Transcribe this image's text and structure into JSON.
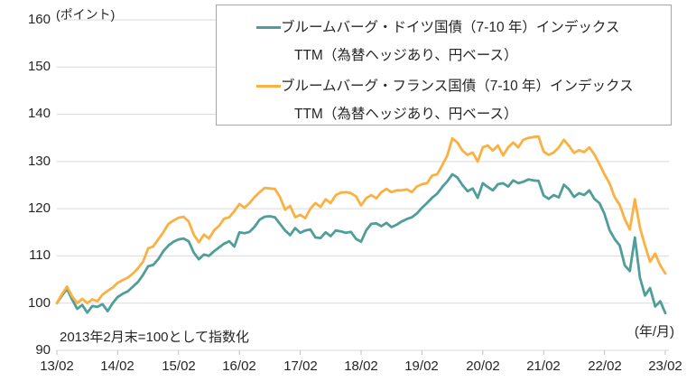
{
  "chart_data": {
    "type": "line",
    "title": "",
    "y_unit_label": "(ポイント)",
    "x_unit_label": "(年/月)",
    "note": "2013年2月末=100として指数化",
    "x_tick_labels": [
      "13/02",
      "14/02",
      "15/02",
      "16/02",
      "17/02",
      "18/02",
      "19/02",
      "20/02",
      "21/02",
      "22/02",
      "23/02"
    ],
    "y_ticks_top_down": [
      "160",
      "150",
      "140",
      "130",
      "120",
      "110",
      "100",
      "90"
    ],
    "ylim": [
      90,
      160
    ],
    "x_range": "2013/02 - 2023/02 monthly",
    "grid": "horizontal",
    "legend_position": "top-right-boxed",
    "colors": {
      "germany": "#4F9E99",
      "france": "#FBB042",
      "grid": "#D9D9D9",
      "tick": "#BFBFBF",
      "text": "#262626",
      "legend_border": "#A6A6A6"
    },
    "series": [
      {
        "name": "ブルームバーグ・ドイツ国債（7-10 年）インデックスTTM（為替ヘッジあり、円ベース）",
        "name_line1": "ブルームバーグ・ドイツ国債（7-10 年）インデックス",
        "name_line2": "TTM（為替ヘッジあり、円ベース）",
        "color": "#4F9E99",
        "values": [
          100.0,
          101.6,
          103.0,
          100.8,
          98.8,
          99.6,
          98.0,
          99.4,
          99.2,
          99.8,
          98.3,
          100.0,
          101.3,
          102.0,
          102.5,
          103.5,
          104.5,
          106.0,
          107.8,
          108.1,
          109.3,
          111.0,
          112.2,
          113.0,
          113.5,
          113.7,
          113.1,
          110.7,
          109.3,
          110.3,
          110.0,
          111.0,
          111.8,
          112.6,
          113.1,
          112.0,
          115.0,
          114.8,
          115.1,
          116.2,
          117.7,
          118.3,
          118.4,
          118.2,
          116.8,
          115.4,
          114.4,
          115.9,
          114.9,
          115.4,
          115.6,
          113.9,
          113.8,
          115.0,
          114.2,
          115.4,
          115.2,
          114.9,
          115.1,
          113.6,
          113.0,
          115.4,
          116.8,
          116.9,
          116.3,
          117.0,
          116.1,
          116.6,
          117.3,
          117.8,
          118.2,
          119.0,
          120.2,
          121.2,
          122.3,
          123.2,
          124.6,
          125.8,
          127.3,
          126.6,
          125.0,
          123.7,
          124.3,
          122.3,
          125.4,
          124.6,
          123.9,
          125.2,
          125.4,
          124.7,
          126.0,
          125.4,
          125.7,
          126.2,
          126.0,
          125.9,
          122.8,
          122.1,
          122.9,
          122.4,
          125.1,
          124.1,
          122.5,
          123.3,
          122.9,
          123.9,
          122.1,
          121.2,
          118.9,
          115.5,
          113.6,
          112.2,
          108.0,
          106.8,
          113.9,
          105.4,
          101.6,
          103.2,
          99.3,
          100.4,
          97.9
        ]
      },
      {
        "name": "ブルームバーグ・フランス国債（7-10 年）インデックスTTM（為替ヘッジあり、円ベース）",
        "name_line1": "ブルームバーグ・フランス国債（7-10 年）インデックス",
        "name_line2": "TTM（為替ヘッジあり、円ベース）",
        "color": "#FBB042",
        "values": [
          100.0,
          101.9,
          103.5,
          101.5,
          100.0,
          100.9,
          100.0,
          100.8,
          100.4,
          101.8,
          102.6,
          103.3,
          104.3,
          104.9,
          105.4,
          106.3,
          107.4,
          108.8,
          111.6,
          112.0,
          113.5,
          115.0,
          116.8,
          117.5,
          118.1,
          118.3,
          117.3,
          114.5,
          112.9,
          114.5,
          113.7,
          115.4,
          116.4,
          117.9,
          118.2,
          119.5,
          121.0,
          120.2,
          121.2,
          122.5,
          123.5,
          124.4,
          124.3,
          124.2,
          122.5,
          119.8,
          120.6,
          118.2,
          118.7,
          118.0,
          120.0,
          121.2,
          120.4,
          122.0,
          121.2,
          122.9,
          123.4,
          123.5,
          123.3,
          122.6,
          120.7,
          122.2,
          122.9,
          122.2,
          123.5,
          124.2,
          123.5,
          123.9,
          123.9,
          124.1,
          123.5,
          124.7,
          125.2,
          125.4,
          127.0,
          127.3,
          129.2,
          131.3,
          134.9,
          134.0,
          132.3,
          131.4,
          131.9,
          130.0,
          133.0,
          133.4,
          132.3,
          133.4,
          131.3,
          133.0,
          134.0,
          133.0,
          134.6,
          135.0,
          135.2,
          135.3,
          132.1,
          131.4,
          131.9,
          133.0,
          134.6,
          133.3,
          131.8,
          132.4,
          132.0,
          133.0,
          131.5,
          129.5,
          127.3,
          125.4,
          122.5,
          120.8,
          117.8,
          115.6,
          122.0,
          116.0,
          112.2,
          108.8,
          110.5,
          108.0,
          106.3
        ]
      }
    ]
  }
}
